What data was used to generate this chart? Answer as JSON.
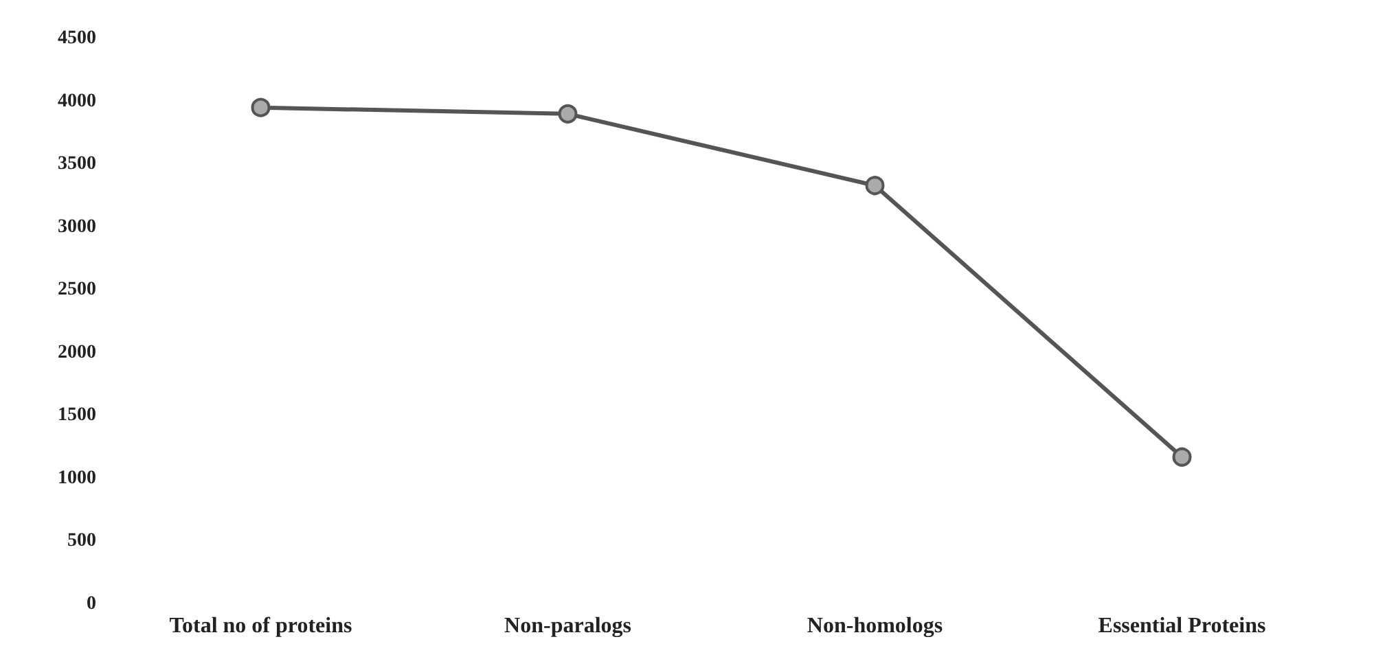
{
  "chart_data": {
    "type": "line",
    "categories": [
      "Total no of proteins",
      "Non-paralogs",
      "Non-homologs",
      "Essential Proteins"
    ],
    "series": [
      {
        "color": "#555555",
        "values": [
          3950,
          3900,
          3330,
          1170
        ]
      }
    ],
    "ylim": [
      0,
      4500
    ],
    "yticks": [
      0,
      500,
      1000,
      1500,
      2000,
      2500,
      3000,
      3500,
      4000,
      4500
    ],
    "grid": false,
    "marker": "circle",
    "line_style": "solid"
  }
}
